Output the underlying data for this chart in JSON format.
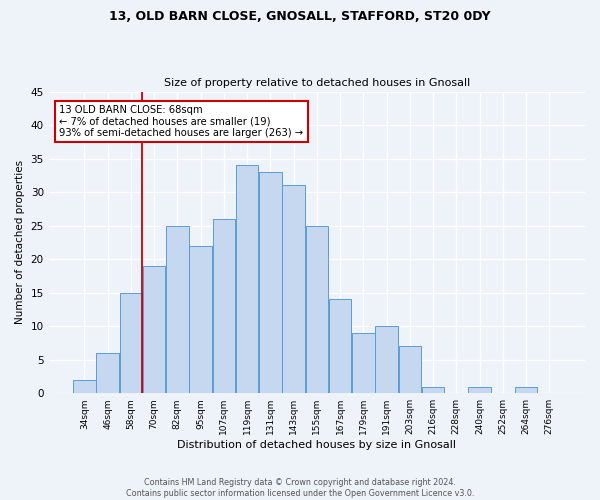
{
  "title_line1": "13, OLD BARN CLOSE, GNOSALL, STAFFORD, ST20 0DY",
  "title_line2": "Size of property relative to detached houses in Gnosall",
  "xlabel": "Distribution of detached houses by size in Gnosall",
  "ylabel": "Number of detached properties",
  "categories": [
    "34sqm",
    "46sqm",
    "58sqm",
    "70sqm",
    "82sqm",
    "95sqm",
    "107sqm",
    "119sqm",
    "131sqm",
    "143sqm",
    "155sqm",
    "167sqm",
    "179sqm",
    "191sqm",
    "203sqm",
    "216sqm",
    "228sqm",
    "240sqm",
    "252sqm",
    "264sqm",
    "276sqm"
  ],
  "values": [
    2,
    6,
    15,
    19,
    25,
    22,
    26,
    34,
    33,
    31,
    25,
    14,
    9,
    10,
    7,
    1,
    0,
    1,
    0,
    1,
    0
  ],
  "bar_color": "#c5d8f0",
  "bar_edge_color": "#5b9bd5",
  "marker_label_line1": "13 OLD BARN CLOSE: 68sqm",
  "marker_label_line2": "← 7% of detached houses are smaller (19)",
  "marker_label_line3": "93% of semi-detached houses are larger (263) →",
  "annotation_box_color": "#ffffff",
  "annotation_box_edge_color": "#cc0000",
  "vline_color": "#cc0000",
  "vline_x": 2.5,
  "ylim": [
    0,
    45
  ],
  "yticks": [
    0,
    5,
    10,
    15,
    20,
    25,
    30,
    35,
    40,
    45
  ],
  "background_color": "#eef2f9",
  "grid_color": "#ffffff",
  "footer_line1": "Contains HM Land Registry data © Crown copyright and database right 2024.",
  "footer_line2": "Contains public sector information licensed under the Open Government Licence v3.0."
}
